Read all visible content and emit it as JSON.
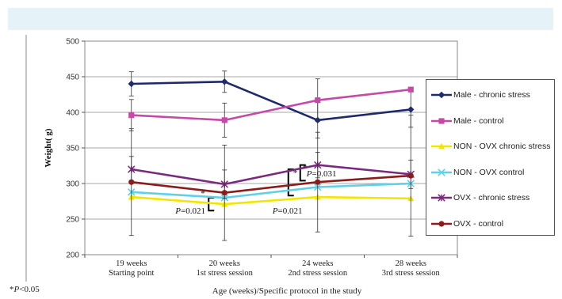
{
  "footnote_p": "P",
  "footnote_rest": "<0.05",
  "footnote_star": "*",
  "chart_data": {
    "type": "line",
    "xlabel": "Age (weeks)/Specific protocol in the study",
    "ylabel": "Weight( g)",
    "ylim": [
      200,
      500
    ],
    "yticks": [
      200,
      250,
      300,
      350,
      400,
      450,
      500
    ],
    "categories": [
      [
        "19 weeks",
        "Starting point"
      ],
      [
        "20 weeks",
        "1st stress session"
      ],
      [
        "24 weeks",
        "2nd stress session"
      ],
      [
        "28 weeks",
        "3rd stress session"
      ]
    ],
    "legend_position": "right",
    "series": [
      {
        "name": "Male - chronic stress",
        "color": "#1f2a6b",
        "marker": "diamond",
        "values": [
          440,
          443,
          389,
          404
        ],
        "err": [
          17,
          15,
          25,
          25
        ]
      },
      {
        "name": "Male - control",
        "color": "#c44aa8",
        "marker": "square",
        "values": [
          396,
          389,
          417,
          432
        ],
        "err": [
          22,
          24,
          30,
          0
        ]
      },
      {
        "name": "NON - OVX chronic stress",
        "color": "#f2e600",
        "marker": "triangle",
        "values": [
          281,
          271,
          281,
          279
        ],
        "err": [
          0,
          0,
          0,
          0
        ]
      },
      {
        "name": "NON - OVX control",
        "color": "#5fd0e8",
        "marker": "x",
        "values": [
          288,
          280,
          295,
          300
        ],
        "err": [
          0,
          0,
          0,
          0
        ]
      },
      {
        "name": "OVX - chronic stress",
        "color": "#7a2a7e",
        "marker": "star",
        "values": [
          320,
          299,
          326,
          313
        ],
        "err": [
          18,
          20,
          18,
          20
        ]
      },
      {
        "name": "OVX - control",
        "color": "#8b1c1c",
        "marker": "circle",
        "values": [
          302,
          287,
          302,
          311
        ],
        "err": [
          75,
          67,
          70,
          85
        ]
      }
    ],
    "annotations": [
      {
        "text": "P=0.021",
        "near": "20 weeks"
      },
      {
        "text": "P=0.021",
        "near": "24 weeks (lower)"
      },
      {
        "text": "P=0.031",
        "near": "24 weeks (upper)"
      },
      {
        "text": "*",
        "type": "significance marker"
      }
    ]
  }
}
